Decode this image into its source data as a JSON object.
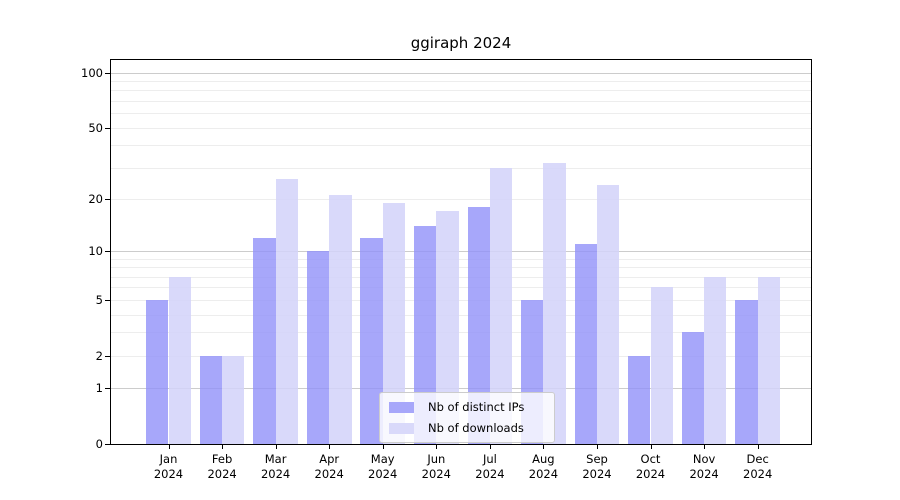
{
  "title": "ggiraph 2024",
  "chart_data": {
    "type": "bar",
    "title": "ggiraph 2024",
    "categories": [
      "Jan 2024",
      "Feb 2024",
      "Mar 2024",
      "Apr 2024",
      "May 2024",
      "Jun 2024",
      "Jul 2024",
      "Aug 2024",
      "Sep 2024",
      "Oct 2024",
      "Nov 2024",
      "Dec 2024"
    ],
    "months": [
      "Jan",
      "Feb",
      "Mar",
      "Apr",
      "May",
      "Jun",
      "Jul",
      "Aug",
      "Sep",
      "Oct",
      "Nov",
      "Dec"
    ],
    "year": "2024",
    "series": [
      {
        "name": "Nb of distinct IPs",
        "values": [
          5,
          2,
          12,
          10,
          12,
          14,
          18,
          5,
          11,
          2,
          3,
          5
        ],
        "color": "rgba(145,145,249,0.8)",
        "legend_color": "#a7a7fa"
      },
      {
        "name": "Nb of downloads",
        "values": [
          7,
          2,
          26,
          21,
          19,
          17,
          30,
          32,
          24,
          6,
          7,
          7
        ],
        "color": "rgba(210,210,249,0.85)",
        "legend_color": "#d9d9fa"
      }
    ],
    "yscale": "log1p",
    "ylim": [
      0,
      117
    ],
    "yticks": [
      100,
      50,
      20,
      10,
      5,
      2,
      1,
      0
    ],
    "major_gridlines": [
      1,
      10,
      100
    ],
    "minor_gridlines": [
      2,
      3,
      4,
      5,
      6,
      7,
      8,
      9,
      20,
      30,
      40,
      50,
      60,
      70,
      80,
      90
    ],
    "grid": true,
    "legend_position": "lower center",
    "xlabel": "",
    "ylabel": ""
  },
  "colors": {
    "background": "#ffffff",
    "axis": "#000000",
    "grid_major": "#cccccc",
    "grid_minor": "#ededed",
    "legend_border": "#cccccc",
    "bar_ips": "#a7a7fa",
    "bar_downloads": "#d9d9fa"
  }
}
